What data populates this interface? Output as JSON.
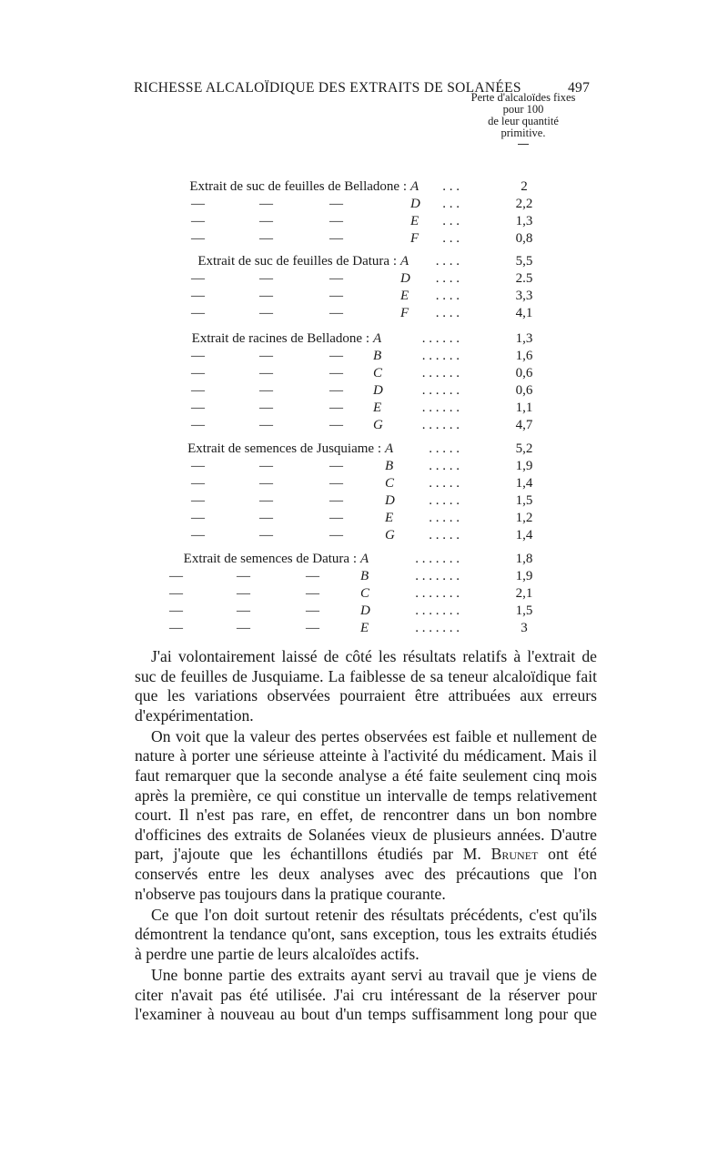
{
  "header": {
    "running_title": "RICHESSE ALCALOÏDIQUE DES EXTRAITS DE SOLANÉES",
    "page_number": "497"
  },
  "table": {
    "column_header": [
      "Perte d'alcaloïdes fixes",
      "pour 100",
      "de leur quantité",
      "primitive."
    ],
    "ditto": "—",
    "groups": [
      {
        "label": "Extrait de suc de feuilles de Belladone :",
        "leader": ". . .",
        "rows": [
          {
            "letter": "A",
            "value": "2"
          },
          {
            "letter": "D",
            "value": "2,2"
          },
          {
            "letter": "E",
            "value": "1,3"
          },
          {
            "letter": "F",
            "value": "0,8"
          }
        ]
      },
      {
        "label": "Extrait de suc de feuilles de Datura :",
        "leader": ". . . .",
        "rows": [
          {
            "letter": "A",
            "value": "5,5"
          },
          {
            "letter": "D",
            "value": "2.5"
          },
          {
            "letter": "E",
            "value": "3,3"
          },
          {
            "letter": "F",
            "value": "4,1"
          }
        ]
      },
      {
        "label": "Extrait de racines de Belladone :",
        "leader": ". . . . . .",
        "rows": [
          {
            "letter": "A",
            "value": "1,3"
          },
          {
            "letter": "B",
            "value": "1,6"
          },
          {
            "letter": "C",
            "value": "0,6"
          },
          {
            "letter": "D",
            "value": "0,6"
          },
          {
            "letter": "E",
            "value": "1,1"
          },
          {
            "letter": "G",
            "value": "4,7"
          }
        ]
      },
      {
        "label": "Extrait de semences de Jusquiame :",
        "leader": ". . . . .",
        "rows": [
          {
            "letter": "A",
            "value": "5,2"
          },
          {
            "letter": "B",
            "value": "1,9"
          },
          {
            "letter": "C",
            "value": "1,4"
          },
          {
            "letter": "D",
            "value": "1,5"
          },
          {
            "letter": "E",
            "value": "1,2"
          },
          {
            "letter": "G",
            "value": "1,4"
          }
        ]
      },
      {
        "label": "Extrait de semences de Datura :",
        "leader": ". . . . . . .",
        "rows": [
          {
            "letter": "A",
            "value": "1,8"
          },
          {
            "letter": "B",
            "value": "1,9"
          },
          {
            "letter": "C",
            "value": "2,1"
          },
          {
            "letter": "D",
            "value": "1,5"
          },
          {
            "letter": "E",
            "value": "3"
          }
        ]
      }
    ]
  },
  "paragraphs": {
    "p1": "J'ai volontairement laissé de côté les résultats relatifs à l'extrait de suc de feuilles de Jusquiame. La faiblesse de sa teneur alcaloïdique fait que les variations observées pourraient être attribuées aux erreurs d'expérimentation.",
    "p2_a": "On voit que la valeur des pertes observées est faible et nullement de nature à porter une sérieuse atteinte à l'activité du médicament. Mais il faut remarquer que la seconde analyse a été faite seulement cinq mois après la première, ce qui constitue un intervalle de temps relativement court. Il n'est pas rare, en effet, de rencontrer dans un bon nombre d'officines des extraits de Solanées vieux de plusieurs années. D'autre part, j'ajoute que les échantillons étudiés par M. ",
    "p2_name": "Brunet",
    "p2_b": " ont été conservés entre les deux analyses avec des précautions que l'on n'observe pas toujours dans la pratique courante.",
    "p3": "Ce que l'on doit surtout retenir des résultats précédents, c'est qu'ils démontrent la tendance qu'ont, sans exception, tous les extraits étudiés à perdre une partie de leurs alcaloïdes actifs.",
    "p4": "Une bonne partie des extraits ayant servi au travail que je viens de citer n'avait pas été utilisée. J'ai cru intéressant de la réserver pour l'examiner à nouveau au bout d'un temps suffisamment long pour que"
  }
}
